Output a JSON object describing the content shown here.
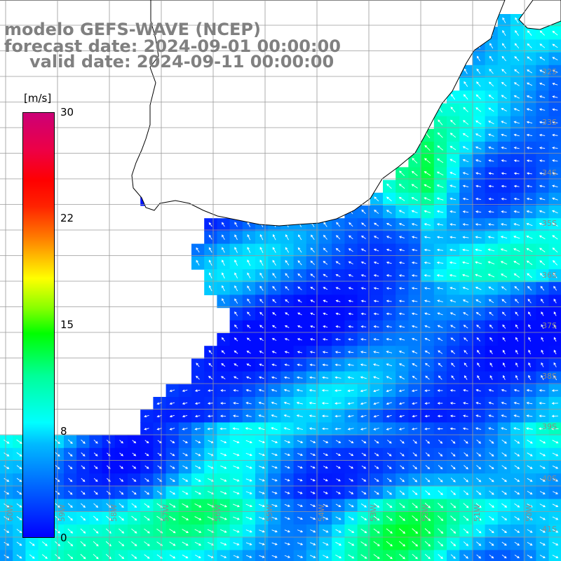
{
  "title": {
    "line1": "modelo GEFS-WAVE (NCEP)",
    "line2": "forecast date: 2024-09-01 00:00:00",
    "line3": "valid date: 2024-09-11 00:00:00"
  },
  "colorbar": {
    "unit": "[m/s]",
    "ticks": [
      "30",
      "22",
      "15",
      "8",
      "0"
    ],
    "colors": [
      "#0000ff",
      "#0088ff",
      "#00ffff",
      "#00ff00",
      "#ffff00",
      "#ff7700",
      "#ff0000",
      "#cc0077"
    ]
  },
  "lat_labels": [
    "32S",
    "33S",
    "34S",
    "35S",
    "36S",
    "37S",
    "38S",
    "39S",
    "40S",
    "41S"
  ],
  "lon_labels": [
    "60W",
    "59W",
    "58W",
    "57W",
    "56W",
    "55W",
    "54W",
    "53W",
    "52W",
    "51W",
    "50W"
  ],
  "colors": {
    "land": "#ffffff",
    "coast": "#000000",
    "grid": "#9a9a9a",
    "arrow": "#ffffff"
  }
}
